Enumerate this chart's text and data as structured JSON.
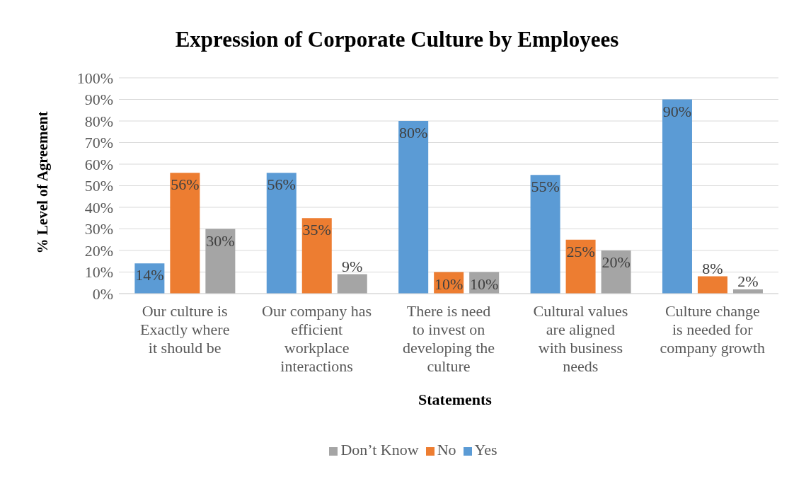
{
  "chart_data": {
    "type": "bar",
    "title": "Expression of Corporate Culture by Employees",
    "xlabel": "Statements",
    "ylabel": "% Level of Agreement",
    "categories": [
      "Our culture is Exactly where it should be",
      "Our company has efficient workplace interactions",
      "There is need to invest on developing the culture",
      "Cultural values are aligned with business needs",
      "Culture change is needed for company growth"
    ],
    "series": [
      {
        "name": "Yes",
        "color": "#5b9bd5",
        "values": [
          14,
          56,
          80,
          55,
          90
        ]
      },
      {
        "name": "No",
        "color": "#ed7d31",
        "values": [
          56,
          35,
          10,
          25,
          8
        ]
      },
      {
        "name": "Don’t Know",
        "color": "#a5a5a5",
        "values": [
          30,
          9,
          10,
          20,
          2
        ]
      }
    ],
    "ylim": [
      0,
      100
    ],
    "yticks": [
      {
        "value": 0,
        "label": "0%"
      },
      {
        "value": 10,
        "label": "10%"
      },
      {
        "value": 20,
        "label": "20%"
      },
      {
        "value": 30,
        "label": "30%"
      },
      {
        "value": 40,
        "label": "40%"
      },
      {
        "value": 50,
        "label": "50%"
      },
      {
        "value": 60,
        "label": "60%"
      },
      {
        "value": 70,
        "label": "70%"
      },
      {
        "value": 80,
        "label": "80%"
      },
      {
        "value": 90,
        "label": "90%"
      },
      {
        "value": 100,
        "label": "100%"
      }
    ],
    "value_labels": [
      [
        "14%",
        "56%",
        "80%",
        "55%",
        "90%"
      ],
      [
        "56%",
        "35%",
        "10%",
        "25%",
        "8%"
      ],
      [
        "30%",
        "9%",
        "10%",
        "20%",
        "2%"
      ]
    ],
    "grid": "y",
    "legend": "bottom"
  }
}
